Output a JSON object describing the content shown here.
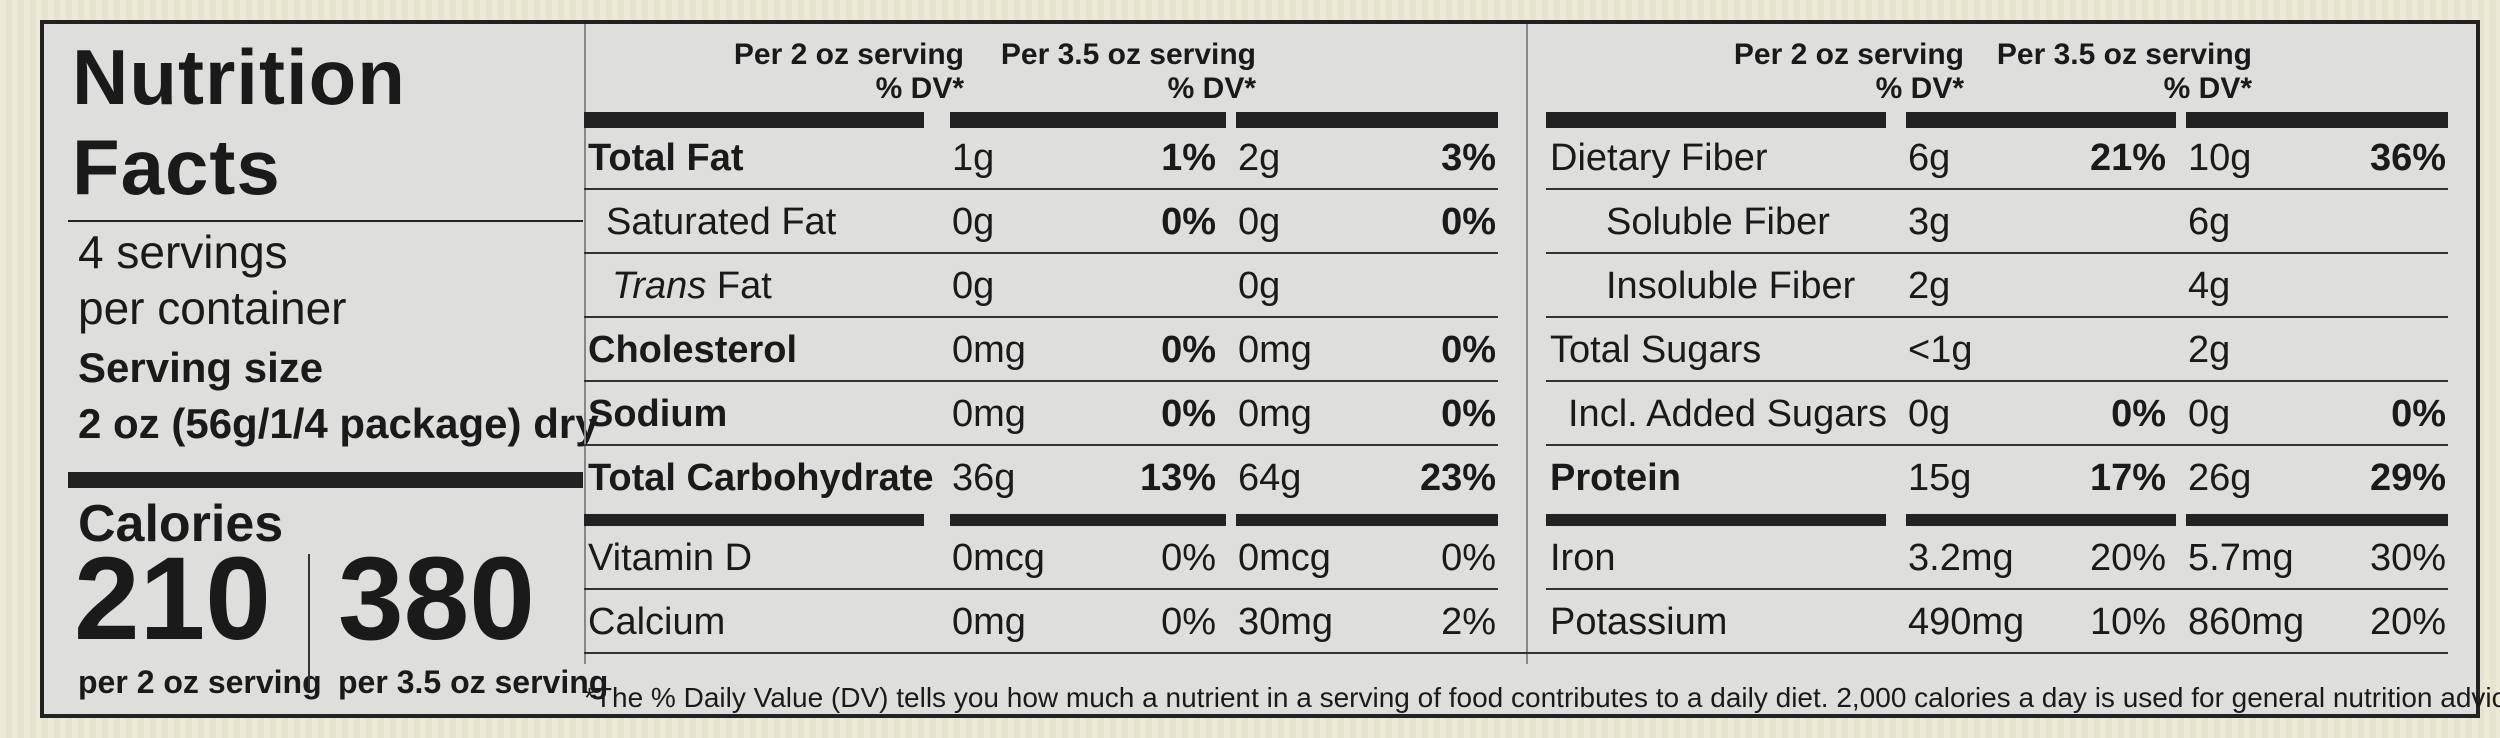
{
  "title_line1": "Nutrition",
  "title_line2": "Facts",
  "servings_line1": "4 servings",
  "servings_line2": "per container",
  "serving_size_label": "Serving size",
  "serving_size_value": "2 oz (56g/1/4 package) dry",
  "calories_label": "Calories",
  "calories": [
    {
      "value": "210",
      "basis": "per 2 oz serving"
    },
    {
      "value": "380",
      "basis": "per 3.5 oz serving"
    }
  ],
  "column_headers": {
    "serving1_line1": "Per 2 oz serving",
    "serving1_line2": "% DV*",
    "serving2_line1": "Per 3.5 oz serving",
    "serving2_line2": "% DV*"
  },
  "left_rows": [
    {
      "name": "Total Fat",
      "amt1": "1g",
      "dv1": "1%",
      "amt2": "2g",
      "dv2": "3%"
    },
    {
      "name": "Saturated Fat",
      "amt1": "0g",
      "dv1": "0%",
      "amt2": "0g",
      "dv2": "0%"
    },
    {
      "name_italic": "Trans",
      "name_rest": " Fat",
      "amt1": "0g",
      "dv1": "",
      "amt2": "0g",
      "dv2": ""
    },
    {
      "name": "Cholesterol",
      "amt1": "0mg",
      "dv1": "0%",
      "amt2": "0mg",
      "dv2": "0%"
    },
    {
      "name": "Sodium",
      "amt1": "0mg",
      "dv1": "0%",
      "amt2": "0mg",
      "dv2": "0%"
    },
    {
      "name": "Total Carbohydrate",
      "amt1": "36g",
      "dv1": "13%",
      "amt2": "64g",
      "dv2": "23%"
    },
    {
      "name": "Vitamin D",
      "amt1": "0mcg",
      "dv1": "0%",
      "amt2": "0mcg",
      "dv2": "0%"
    },
    {
      "name": "Calcium",
      "amt1": "0mg",
      "dv1": "0%",
      "amt2": "30mg",
      "dv2": "2%"
    }
  ],
  "right_rows": [
    {
      "name": "Dietary Fiber",
      "amt1": "6g",
      "dv1": "21%",
      "amt2": "10g",
      "dv2": "36%"
    },
    {
      "name": "Soluble Fiber",
      "amt1": "3g",
      "dv1": "",
      "amt2": "6g",
      "dv2": ""
    },
    {
      "name": "Insoluble Fiber",
      "amt1": "2g",
      "dv1": "",
      "amt2": "4g",
      "dv2": ""
    },
    {
      "name": "Total Sugars",
      "amt1": "<1g",
      "dv1": "",
      "amt2": "2g",
      "dv2": ""
    },
    {
      "name": "Incl. Added Sugars",
      "amt1": "0g",
      "dv1": "0%",
      "amt2": "0g",
      "dv2": "0%"
    },
    {
      "name": "Protein",
      "amt1": "15g",
      "dv1": "17%",
      "amt2": "26g",
      "dv2": "29%"
    },
    {
      "name": "Iron",
      "amt1": "3.2mg",
      "dv1": "20%",
      "amt2": "5.7mg",
      "dv2": "30%"
    },
    {
      "name": "Potassium",
      "amt1": "490mg",
      "dv1": "10%",
      "amt2": "860mg",
      "dv2": "20%"
    }
  ],
  "footnote": "*The % Daily Value (DV) tells you how much a nutrient in a serving of food contributes to a daily diet. 2,000 calories a day is used for general nutrition advice."
}
